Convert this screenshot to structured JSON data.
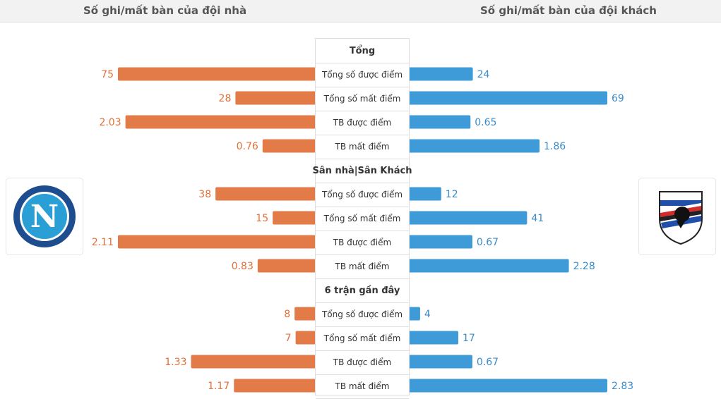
{
  "header": {
    "home_title": "Số ghi/mất bàn của đội nhà",
    "away_title": "Số ghi/mất bàn của đội khách"
  },
  "colors": {
    "home_bar": "#e37b49",
    "away_bar": "#3f9bd8",
    "home_text": "#e1703a",
    "away_text": "#3b8cc9"
  },
  "logos": {
    "home": "napoli-crest-icon",
    "away": "sampdoria-crest-icon"
  },
  "chart_data": {
    "type": "bar",
    "orientation": "diverging-horizontal",
    "sections": [
      {
        "title": "Tổng",
        "rows": [
          {
            "label": "Tổng số được điểm",
            "home": 75,
            "away": 24,
            "home_text": "75",
            "away_text": "24"
          },
          {
            "label": "Tổng số mất điểm",
            "home": 28,
            "away": 69,
            "home_text": "28",
            "away_text": "69"
          },
          {
            "label": "TB được điểm",
            "home": 2.03,
            "away": 0.65,
            "home_text": "2.03",
            "away_text": "0.65"
          },
          {
            "label": "TB mất điểm",
            "home": 0.76,
            "away": 1.86,
            "home_text": "0.76",
            "away_text": "1.86"
          }
        ]
      },
      {
        "title": "Sân nhà|Sân Khách",
        "rows": [
          {
            "label": "Tổng số được điểm",
            "home": 38,
            "away": 12,
            "home_text": "38",
            "away_text": "12"
          },
          {
            "label": "Tổng số mất điểm",
            "home": 15,
            "away": 41,
            "home_text": "15",
            "away_text": "41"
          },
          {
            "label": "TB được điểm",
            "home": 2.11,
            "away": 0.67,
            "home_text": "2.11",
            "away_text": "0.67"
          },
          {
            "label": "TB mất điểm",
            "home": 0.83,
            "away": 2.28,
            "home_text": "0.83",
            "away_text": "2.28"
          }
        ]
      },
      {
        "title": "6 trận gần đây",
        "rows": [
          {
            "label": "Tổng số được điểm",
            "home": 8,
            "away": 4,
            "home_text": "8",
            "away_text": "4"
          },
          {
            "label": "Tổng số mất điểm",
            "home": 7,
            "away": 17,
            "home_text": "7",
            "away_text": "17"
          },
          {
            "label": "TB được điểm",
            "home": 1.33,
            "away": 0.67,
            "home_text": "1.33",
            "away_text": "0.67"
          },
          {
            "label": "TB mất điểm",
            "home": 1.17,
            "away": 2.83,
            "home_text": "1.17",
            "away_text": "2.83"
          }
        ]
      }
    ]
  }
}
